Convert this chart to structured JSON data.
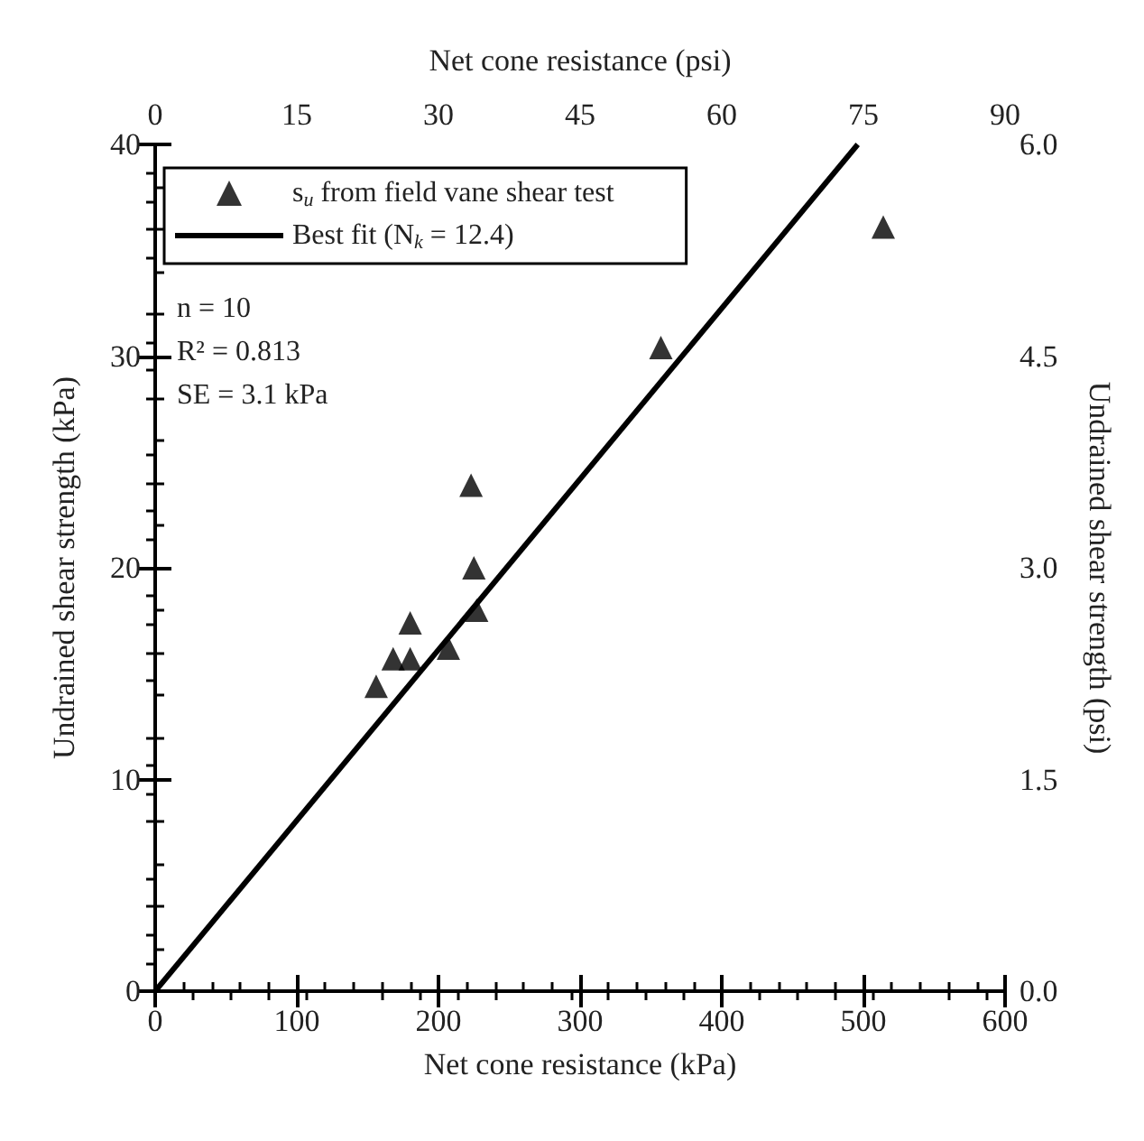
{
  "chart_data": {
    "type": "scatter",
    "xlabel": "Net cone resistance (kPa)",
    "ylabel": "Undrained shear strength (kPa)",
    "x2label": "Net cone resistance (psi)",
    "y2label": "Undrained shear strength (psi)",
    "xlim": [
      0,
      600
    ],
    "xticks": [
      0,
      100,
      200,
      300,
      400,
      500,
      600
    ],
    "ylim": [
      0,
      40
    ],
    "yticks": [
      0,
      10,
      20,
      30,
      40
    ],
    "x2lim": [
      0,
      90
    ],
    "x2ticks": [
      0,
      15,
      30,
      45,
      60,
      75,
      90
    ],
    "y2lim": [
      0,
      6
    ],
    "y2ticks": [
      {
        "value": 0,
        "label": "0.0"
      },
      {
        "value": 1.5,
        "label": "1.5"
      },
      {
        "value": 3,
        "label": "3.0"
      },
      {
        "value": 4.5,
        "label": "4.5"
      },
      {
        "value": 6,
        "label": "6.0"
      }
    ],
    "series": [
      {
        "name": "s$_{u}$ from field vane shear test",
        "type": "scatter",
        "marker": "triangle",
        "color": "#000000",
        "x": [
          156,
          168,
          180,
          180,
          207,
          223,
          225,
          227,
          357,
          514
        ],
        "values": [
          14.4,
          15.7,
          15.7,
          17.4,
          16.2,
          23.9,
          20.0,
          18.0,
          30.4,
          36.1
        ]
      },
      {
        "name": "Best fit (N$_{k}$ = 12.4)",
        "type": "line",
        "marker": "none",
        "line_style": "solid",
        "color": "#000000",
        "x": [
          0,
          496
        ],
        "values": [
          0,
          40
        ]
      }
    ],
    "annotations": [
      "n = 10",
      "R² = 0.813",
      "SE = 3.1 kPa"
    ],
    "legend": "top left",
    "grid": false
  }
}
